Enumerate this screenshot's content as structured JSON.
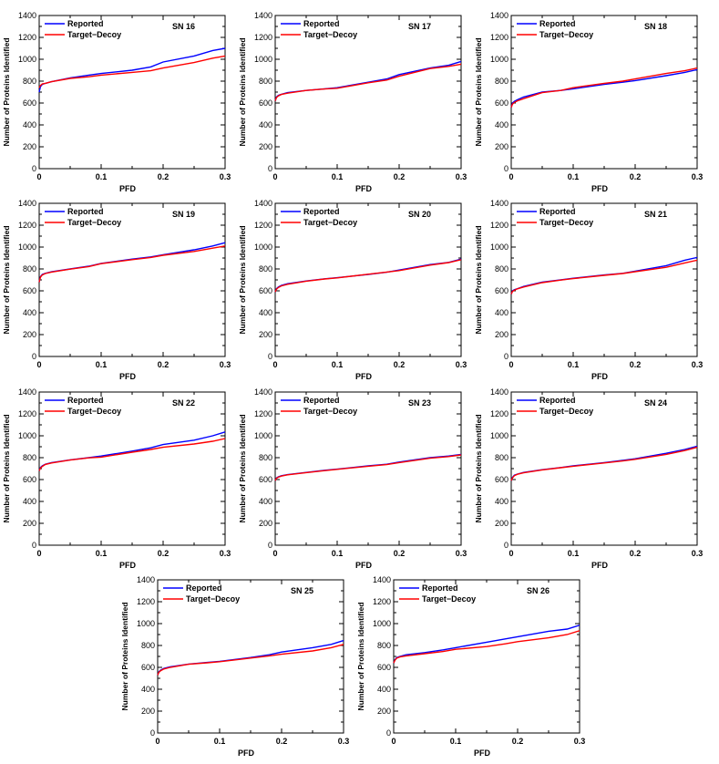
{
  "figure": {
    "legend_labels": [
      "Reported",
      "Target−Decoy"
    ],
    "colors": {
      "Reported": "#0000ff",
      "Target−Decoy": "#ff0000",
      "axis": "#000000"
    }
  },
  "chart_data": [
    {
      "type": "line",
      "title": "SN 16",
      "xlabel": "PFD",
      "ylabel": "Number of Proteins Identified",
      "xlim": [
        0,
        0.3
      ],
      "ylim": [
        0,
        1400
      ],
      "xticks": [
        "0",
        "0.1",
        "0.2",
        "0.3"
      ],
      "yticks": [
        "0",
        "200",
        "400",
        "600",
        "800",
        "1000",
        "1200",
        "1400"
      ],
      "legend": "top-left",
      "grid": false,
      "series": [
        {
          "name": "Reported",
          "color": "#0000ff",
          "x": [
            0,
            0.002,
            0.005,
            0.01,
            0.02,
            0.05,
            0.08,
            0.1,
            0.15,
            0.18,
            0.2,
            0.25,
            0.28,
            0.3
          ],
          "y": [
            700,
            750,
            770,
            780,
            795,
            830,
            855,
            870,
            900,
            930,
            975,
            1030,
            1080,
            1100
          ]
        },
        {
          "name": "Target−Decoy",
          "color": "#ff0000",
          "x": [
            0,
            0.002,
            0.005,
            0.01,
            0.02,
            0.05,
            0.08,
            0.1,
            0.15,
            0.18,
            0.2,
            0.25,
            0.28,
            0.3
          ],
          "y": [
            740,
            760,
            775,
            780,
            795,
            825,
            840,
            855,
            880,
            895,
            920,
            970,
            1010,
            1030
          ]
        }
      ]
    },
    {
      "type": "line",
      "title": "SN 17",
      "xlabel": "PFD",
      "ylabel": "Number of Proteins Identified",
      "xlim": [
        0,
        0.3
      ],
      "ylim": [
        0,
        1400
      ],
      "xticks": [
        "0",
        "0.1",
        "0.2",
        "0.3"
      ],
      "yticks": [
        "0",
        "200",
        "400",
        "600",
        "800",
        "1000",
        "1200",
        "1400"
      ],
      "legend": "top-left",
      "grid": false,
      "series": [
        {
          "name": "Reported",
          "color": "#0000ff",
          "x": [
            0,
            0.002,
            0.005,
            0.01,
            0.02,
            0.05,
            0.08,
            0.1,
            0.15,
            0.18,
            0.2,
            0.25,
            0.28,
            0.3
          ],
          "y": [
            620,
            655,
            670,
            680,
            695,
            715,
            730,
            740,
            790,
            820,
            860,
            920,
            945,
            980
          ]
        },
        {
          "name": "Target−Decoy",
          "color": "#ff0000",
          "x": [
            0,
            0.002,
            0.005,
            0.01,
            0.02,
            0.05,
            0.08,
            0.1,
            0.15,
            0.18,
            0.2,
            0.25,
            0.28,
            0.3
          ],
          "y": [
            620,
            650,
            665,
            678,
            690,
            715,
            728,
            735,
            785,
            810,
            845,
            915,
            935,
            955
          ]
        }
      ]
    },
    {
      "type": "line",
      "title": "SN 18",
      "xlabel": "PFD",
      "ylabel": "Number of Proteins Identified",
      "xlim": [
        0,
        0.3
      ],
      "ylim": [
        0,
        1400
      ],
      "xticks": [
        "0",
        "0.1",
        "0.2",
        "0.3"
      ],
      "yticks": [
        "0",
        "200",
        "400",
        "600",
        "800",
        "1000",
        "1200",
        "1400"
      ],
      "legend": "top-left",
      "grid": false,
      "series": [
        {
          "name": "Reported",
          "color": "#0000ff",
          "x": [
            0,
            0.002,
            0.005,
            0.01,
            0.02,
            0.05,
            0.08,
            0.1,
            0.15,
            0.18,
            0.2,
            0.25,
            0.28,
            0.3
          ],
          "y": [
            560,
            600,
            615,
            630,
            655,
            700,
            715,
            730,
            770,
            790,
            805,
            850,
            880,
            905
          ]
        },
        {
          "name": "Target−Decoy",
          "color": "#ff0000",
          "x": [
            0,
            0.002,
            0.005,
            0.01,
            0.02,
            0.05,
            0.08,
            0.1,
            0.15,
            0.18,
            0.2,
            0.25,
            0.28,
            0.3
          ],
          "y": [
            560,
            590,
            605,
            620,
            640,
            695,
            715,
            740,
            780,
            800,
            820,
            870,
            895,
            920
          ]
        }
      ]
    },
    {
      "type": "line",
      "title": "SN 19",
      "xlabel": "PFD",
      "ylabel": "Number of Proteins Identified",
      "xlim": [
        0,
        0.3
      ],
      "ylim": [
        0,
        1400
      ],
      "xticks": [
        "0",
        "0.1",
        "0.2",
        "0.3"
      ],
      "yticks": [
        "0",
        "200",
        "400",
        "600",
        "800",
        "1000",
        "1200",
        "1400"
      ],
      "legend": "top-left",
      "grid": false,
      "series": [
        {
          "name": "Reported",
          "color": "#0000ff",
          "x": [
            0,
            0.002,
            0.005,
            0.01,
            0.02,
            0.05,
            0.08,
            0.1,
            0.15,
            0.18,
            0.2,
            0.25,
            0.28,
            0.3
          ],
          "y": [
            680,
            730,
            750,
            760,
            775,
            800,
            825,
            850,
            890,
            910,
            930,
            975,
            1010,
            1040
          ]
        },
        {
          "name": "Target−Decoy",
          "color": "#ff0000",
          "x": [
            0,
            0.002,
            0.005,
            0.01,
            0.02,
            0.05,
            0.08,
            0.1,
            0.15,
            0.18,
            0.2,
            0.25,
            0.28,
            0.3
          ],
          "y": [
            680,
            725,
            745,
            758,
            772,
            798,
            822,
            848,
            885,
            905,
            925,
            960,
            990,
            1010
          ]
        }
      ]
    },
    {
      "type": "line",
      "title": "SN 20",
      "xlabel": "PFD",
      "ylabel": "Number of Proteins Identified",
      "xlim": [
        0,
        0.3
      ],
      "ylim": [
        0,
        1400
      ],
      "xticks": [
        "0",
        "0.1",
        "0.2",
        "0.3"
      ],
      "yticks": [
        "0",
        "200",
        "400",
        "600",
        "800",
        "1000",
        "1200",
        "1400"
      ],
      "legend": "top-left",
      "grid": false,
      "series": [
        {
          "name": "Reported",
          "color": "#0000ff",
          "x": [
            0,
            0.002,
            0.005,
            0.01,
            0.02,
            0.05,
            0.08,
            0.1,
            0.15,
            0.18,
            0.2,
            0.25,
            0.28,
            0.3
          ],
          "y": [
            590,
            620,
            635,
            650,
            665,
            690,
            710,
            720,
            750,
            770,
            790,
            840,
            860,
            890
          ]
        },
        {
          "name": "Target−Decoy",
          "color": "#ff0000",
          "x": [
            0,
            0.002,
            0.005,
            0.01,
            0.02,
            0.05,
            0.08,
            0.1,
            0.15,
            0.18,
            0.2,
            0.25,
            0.28,
            0.3
          ],
          "y": [
            590,
            615,
            630,
            645,
            660,
            688,
            708,
            718,
            752,
            772,
            785,
            835,
            858,
            885
          ]
        }
      ]
    },
    {
      "type": "line",
      "title": "SN 21",
      "xlabel": "PFD",
      "ylabel": "Number of Proteins Identified",
      "xlim": [
        0,
        0.3
      ],
      "ylim": [
        0,
        1400
      ],
      "xticks": [
        "0",
        "0.1",
        "0.2",
        "0.3"
      ],
      "yticks": [
        "0",
        "200",
        "400",
        "600",
        "800",
        "1000",
        "1200",
        "1400"
      ],
      "legend": "top-left",
      "grid": false,
      "series": [
        {
          "name": "Reported",
          "color": "#0000ff",
          "x": [
            0,
            0.002,
            0.005,
            0.01,
            0.02,
            0.05,
            0.08,
            0.1,
            0.15,
            0.18,
            0.2,
            0.25,
            0.28,
            0.3
          ],
          "y": [
            570,
            600,
            610,
            620,
            640,
            680,
            700,
            715,
            745,
            760,
            780,
            830,
            880,
            905
          ]
        },
        {
          "name": "Target−Decoy",
          "color": "#ff0000",
          "x": [
            0,
            0.002,
            0.005,
            0.01,
            0.02,
            0.05,
            0.08,
            0.1,
            0.15,
            0.18,
            0.2,
            0.25,
            0.28,
            0.3
          ],
          "y": [
            570,
            595,
            605,
            618,
            635,
            675,
            698,
            712,
            742,
            758,
            775,
            815,
            855,
            880
          ]
        }
      ]
    },
    {
      "type": "line",
      "title": "SN 22",
      "xlabel": "PFD",
      "ylabel": "Number of Proteins Identified",
      "xlim": [
        0,
        0.3
      ],
      "ylim": [
        0,
        1400
      ],
      "xticks": [
        "0",
        "0.1",
        "0.2",
        "0.3"
      ],
      "yticks": [
        "0",
        "200",
        "400",
        "600",
        "800",
        "1000",
        "1200",
        "1400"
      ],
      "legend": "top-left",
      "grid": false,
      "series": [
        {
          "name": "Reported",
          "color": "#0000ff",
          "x": [
            0,
            0.002,
            0.005,
            0.01,
            0.02,
            0.05,
            0.08,
            0.1,
            0.15,
            0.18,
            0.2,
            0.25,
            0.28,
            0.3
          ],
          "y": [
            680,
            710,
            725,
            740,
            755,
            780,
            800,
            815,
            860,
            890,
            920,
            960,
            1000,
            1035
          ]
        },
        {
          "name": "Target−Decoy",
          "color": "#ff0000",
          "x": [
            0,
            0.002,
            0.005,
            0.01,
            0.02,
            0.05,
            0.08,
            0.1,
            0.15,
            0.18,
            0.2,
            0.25,
            0.28,
            0.3
          ],
          "y": [
            680,
            705,
            720,
            738,
            752,
            778,
            798,
            805,
            850,
            875,
            895,
            925,
            950,
            975
          ]
        }
      ]
    },
    {
      "type": "line",
      "title": "SN 23",
      "xlabel": "PFD",
      "ylabel": "Number of Proteins Identified",
      "xlim": [
        0,
        0.3
      ],
      "ylim": [
        0,
        1400
      ],
      "xticks": [
        "0",
        "0.1",
        "0.2",
        "0.3"
      ],
      "yticks": [
        "0",
        "200",
        "400",
        "600",
        "800",
        "1000",
        "1200",
        "1400"
      ],
      "legend": "top-left",
      "grid": false,
      "series": [
        {
          "name": "Reported",
          "color": "#0000ff",
          "x": [
            0,
            0.002,
            0.005,
            0.01,
            0.02,
            0.05,
            0.08,
            0.1,
            0.15,
            0.18,
            0.2,
            0.25,
            0.28,
            0.3
          ],
          "y": [
            590,
            615,
            625,
            635,
            645,
            665,
            685,
            695,
            725,
            740,
            760,
            800,
            815,
            830
          ]
        },
        {
          "name": "Target−Decoy",
          "color": "#ff0000",
          "x": [
            0,
            0.002,
            0.005,
            0.01,
            0.02,
            0.05,
            0.08,
            0.1,
            0.15,
            0.18,
            0.2,
            0.25,
            0.28,
            0.3
          ],
          "y": [
            590,
            612,
            622,
            632,
            643,
            663,
            682,
            693,
            722,
            737,
            755,
            795,
            810,
            825
          ]
        }
      ]
    },
    {
      "type": "line",
      "title": "SN 24",
      "xlabel": "PFD",
      "ylabel": "Number of Proteins Identified",
      "xlim": [
        0,
        0.3
      ],
      "ylim": [
        0,
        1400
      ],
      "xticks": [
        "0",
        "0.1",
        "0.2",
        "0.3"
      ],
      "yticks": [
        "0",
        "200",
        "400",
        "600",
        "800",
        "1000",
        "1200",
        "1400"
      ],
      "legend": "top-left",
      "grid": false,
      "series": [
        {
          "name": "Reported",
          "color": "#0000ff",
          "x": [
            0,
            0.002,
            0.005,
            0.01,
            0.02,
            0.05,
            0.08,
            0.1,
            0.15,
            0.18,
            0.2,
            0.25,
            0.28,
            0.3
          ],
          "y": [
            590,
            620,
            640,
            650,
            665,
            690,
            710,
            725,
            755,
            775,
            790,
            840,
            875,
            905
          ]
        },
        {
          "name": "Target−Decoy",
          "color": "#ff0000",
          "x": [
            0,
            0.002,
            0.005,
            0.01,
            0.02,
            0.05,
            0.08,
            0.1,
            0.15,
            0.18,
            0.2,
            0.25,
            0.28,
            0.3
          ],
          "y": [
            590,
            615,
            635,
            648,
            662,
            688,
            708,
            722,
            752,
            770,
            785,
            830,
            865,
            895
          ]
        }
      ]
    },
    {
      "type": "line",
      "title": "SN 25",
      "xlabel": "PFD",
      "ylabel": "Number of Proteins Identified",
      "xlim": [
        0,
        0.3
      ],
      "ylim": [
        0,
        1400
      ],
      "xticks": [
        "0",
        "0.1",
        "0.2",
        "0.3"
      ],
      "yticks": [
        "0",
        "200",
        "400",
        "600",
        "800",
        "1000",
        "1200",
        "1400"
      ],
      "legend": "top-left",
      "grid": false,
      "series": [
        {
          "name": "Reported",
          "color": "#0000ff",
          "x": [
            0,
            0.002,
            0.005,
            0.01,
            0.02,
            0.05,
            0.08,
            0.1,
            0.15,
            0.18,
            0.2,
            0.25,
            0.28,
            0.3
          ],
          "y": [
            530,
            560,
            575,
            590,
            605,
            630,
            645,
            655,
            690,
            715,
            740,
            780,
            810,
            845
          ]
        },
        {
          "name": "Target−Decoy",
          "color": "#ff0000",
          "x": [
            0,
            0.002,
            0.005,
            0.01,
            0.02,
            0.05,
            0.08,
            0.1,
            0.15,
            0.18,
            0.2,
            0.25,
            0.28,
            0.3
          ],
          "y": [
            530,
            555,
            570,
            585,
            600,
            628,
            642,
            652,
            685,
            705,
            720,
            750,
            780,
            810
          ]
        }
      ]
    },
    {
      "type": "line",
      "title": "SN 26",
      "xlabel": "PFD",
      "ylabel": "Number of Proteins Identified",
      "xlim": [
        0,
        0.3
      ],
      "ylim": [
        0,
        1400
      ],
      "xticks": [
        "0",
        "0.1",
        "0.2",
        "0.3"
      ],
      "yticks": [
        "0",
        "200",
        "400",
        "600",
        "800",
        "1000",
        "1200",
        "1400"
      ],
      "legend": "top-left",
      "grid": false,
      "series": [
        {
          "name": "Reported",
          "color": "#0000ff",
          "x": [
            0,
            0.002,
            0.005,
            0.01,
            0.02,
            0.05,
            0.08,
            0.1,
            0.15,
            0.18,
            0.2,
            0.25,
            0.28,
            0.3
          ],
          "y": [
            640,
            670,
            690,
            700,
            715,
            735,
            760,
            780,
            830,
            860,
            880,
            930,
            950,
            985
          ]
        },
        {
          "name": "Target−Decoy",
          "color": "#ff0000",
          "x": [
            0,
            0.002,
            0.005,
            0.01,
            0.02,
            0.05,
            0.08,
            0.1,
            0.15,
            0.18,
            0.2,
            0.25,
            0.28,
            0.3
          ],
          "y": [
            640,
            665,
            685,
            695,
            705,
            725,
            745,
            765,
            790,
            815,
            835,
            870,
            900,
            935
          ]
        }
      ]
    }
  ]
}
